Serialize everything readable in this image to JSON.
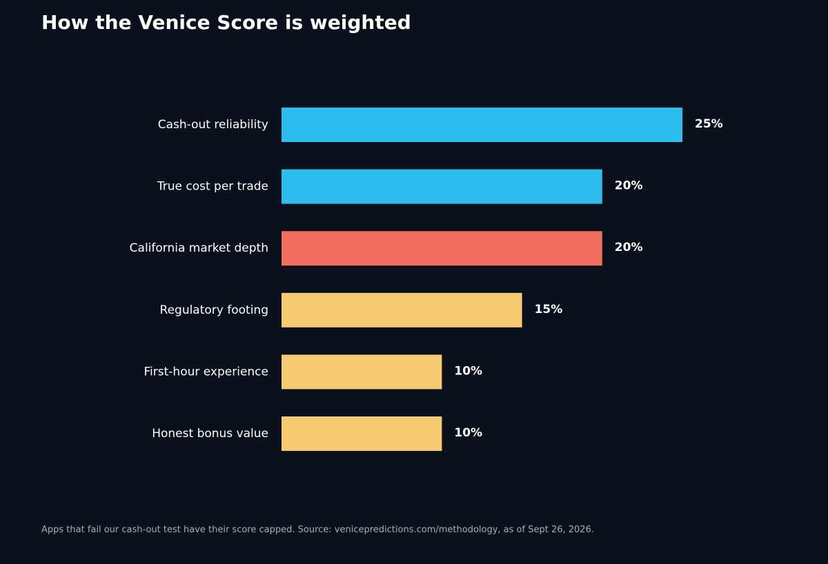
{
  "chart_data": {
    "type": "bar",
    "orientation": "horizontal",
    "title": "How the Venice Score is weighted",
    "categories": [
      "Cash-out reliability",
      "True cost per trade",
      "California market depth",
      "Regulatory footing",
      "First-hour experience",
      "Honest bonus value"
    ],
    "values": [
      25,
      20,
      20,
      15,
      10,
      10
    ],
    "value_labels": [
      "25%",
      "20%",
      "20%",
      "15%",
      "10%",
      "10%"
    ],
    "bar_colors": [
      "#2dbdee",
      "#2dbdee",
      "#f26e5e",
      "#f6c970",
      "#f6c970",
      "#f6c970"
    ],
    "xlim": [
      0,
      25
    ],
    "grid": false,
    "footnote": "Apps that fail our cash-out test have their score capped. Source: venicepredictions.com/methodology, as of Sept 26, 2026."
  },
  "colors": {
    "background": "#0a111c",
    "text": "#ffffff",
    "footnote_text": "#a7adb5"
  }
}
